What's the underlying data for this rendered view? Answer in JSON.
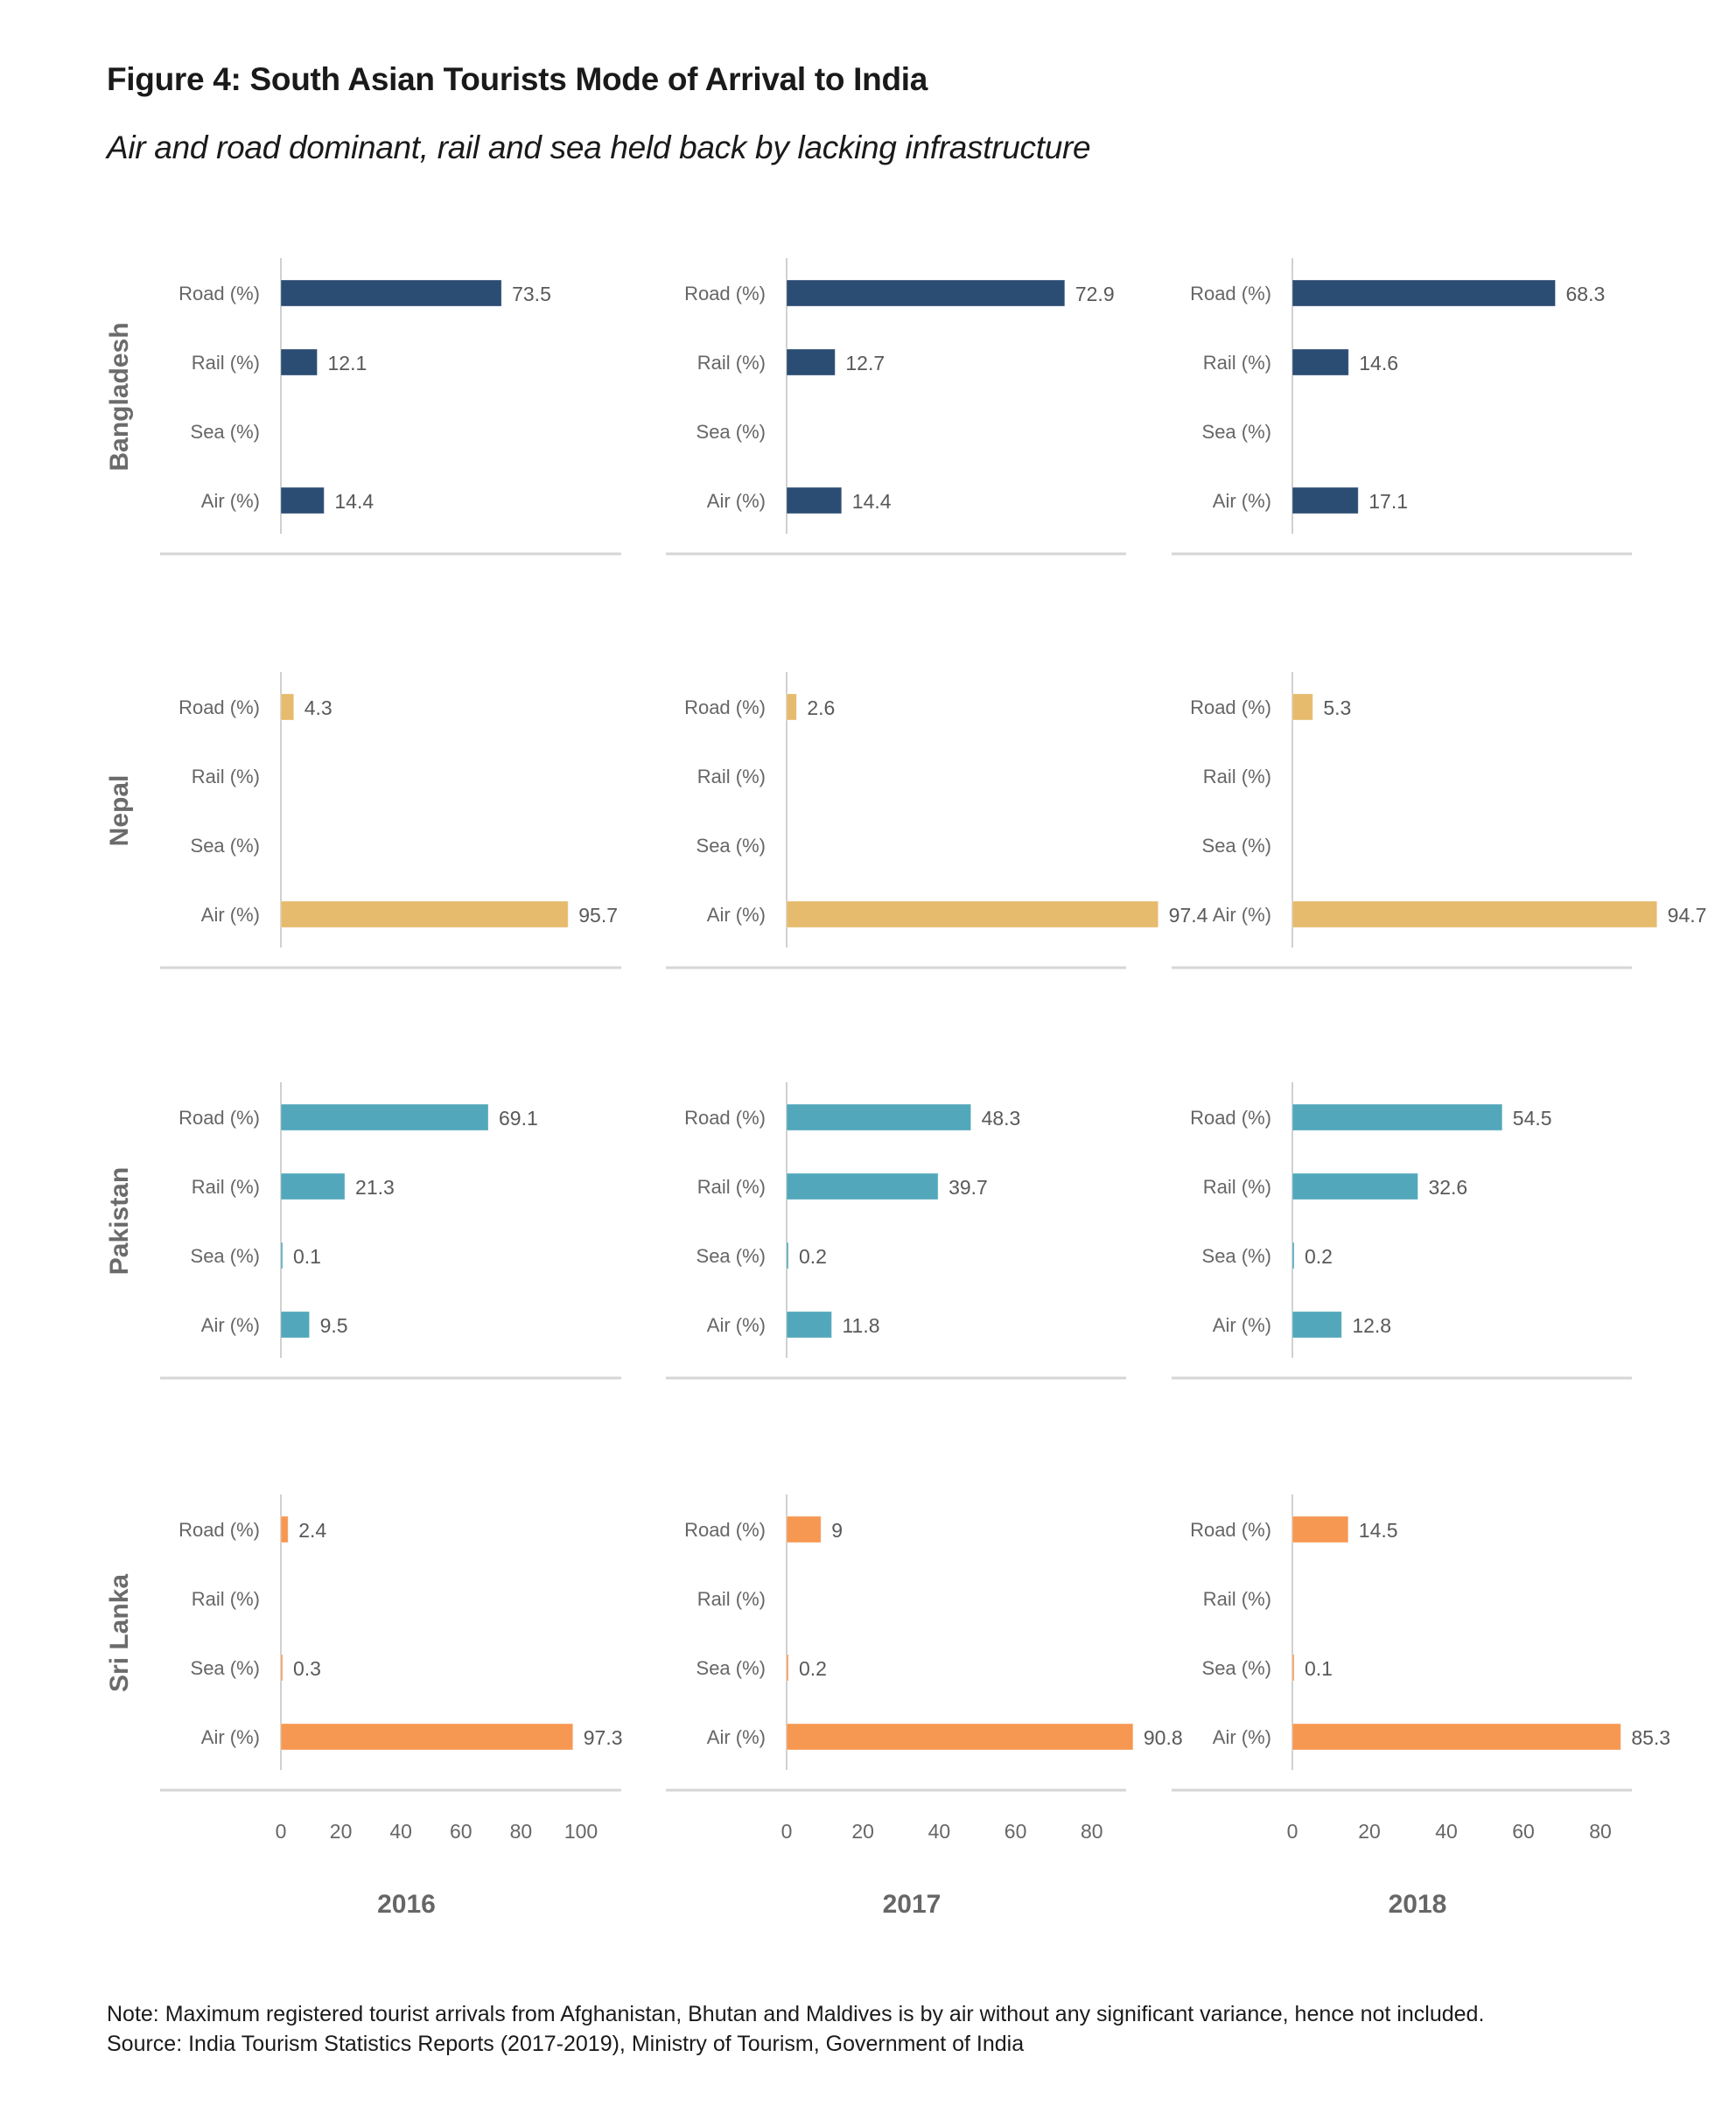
{
  "header": {
    "title": "Figure 4: South Asian Tourists Mode of Arrival to India",
    "subtitle": "Air and road dominant, rail and sea held back by lacking infrastructure"
  },
  "footer": {
    "note": "Note: Maximum registered tourist arrivals from Afghanistan, Bhutan and Maldives is by air without any significant variance, hence not included.",
    "source": "Source: India Tourism Statistics Reports (2017-2019), Ministry of Tourism, Government of India"
  },
  "chart_data": {
    "type": "bar",
    "orientation": "horizontal",
    "layout": "small-multiples grid (rows = countries, columns = years)",
    "title": "Figure 4: South Asian Tourists Mode of Arrival to India",
    "subtitle": "Air and road dominant, rail and sea held back by lacking infrastructure",
    "categories": [
      "Road (%)",
      "Rail (%)",
      "Sea (%)",
      "Air (%)"
    ],
    "years": [
      {
        "label": "2016",
        "xlim": [
          0,
          100
        ],
        "ticks": [
          0,
          20,
          40,
          60,
          80,
          100
        ]
      },
      {
        "label": "2017",
        "xlim": [
          0,
          80
        ],
        "ticks": [
          0,
          20,
          40,
          60,
          80
        ]
      },
      {
        "label": "2018",
        "xlim": [
          0,
          80
        ],
        "ticks": [
          0,
          20,
          40,
          60,
          80
        ]
      }
    ],
    "countries": [
      {
        "name": "Bangladesh",
        "color": "#2B4C73",
        "values": {
          "2016": [
            73.5,
            12.1,
            null,
            14.4
          ],
          "2017": [
            72.9,
            12.7,
            null,
            14.4
          ],
          "2018": [
            68.3,
            14.6,
            null,
            17.1
          ]
        }
      },
      {
        "name": "Nepal",
        "color": "#E6BB6E",
        "values": {
          "2016": [
            4.3,
            null,
            null,
            95.7
          ],
          "2017": [
            2.6,
            null,
            null,
            97.4
          ],
          "2018": [
            5.3,
            null,
            null,
            94.7
          ]
        }
      },
      {
        "name": "Pakistan",
        "color": "#52A7BB",
        "values": {
          "2016": [
            69.1,
            21.3,
            0.1,
            9.5
          ],
          "2017": [
            48.3,
            39.7,
            0.2,
            11.8
          ],
          "2018": [
            54.5,
            32.6,
            0.2,
            12.8
          ]
        }
      },
      {
        "name": "Sri Lanka",
        "color": "#F69852",
        "values": {
          "2016": [
            2.4,
            null,
            0.3,
            97.3
          ],
          "2017": [
            9,
            null,
            0.2,
            90.8
          ],
          "2018": [
            14.5,
            null,
            0.1,
            85.3
          ]
        }
      }
    ],
    "xlabel": "",
    "ylabel": "",
    "grid": false,
    "legend": "none"
  }
}
